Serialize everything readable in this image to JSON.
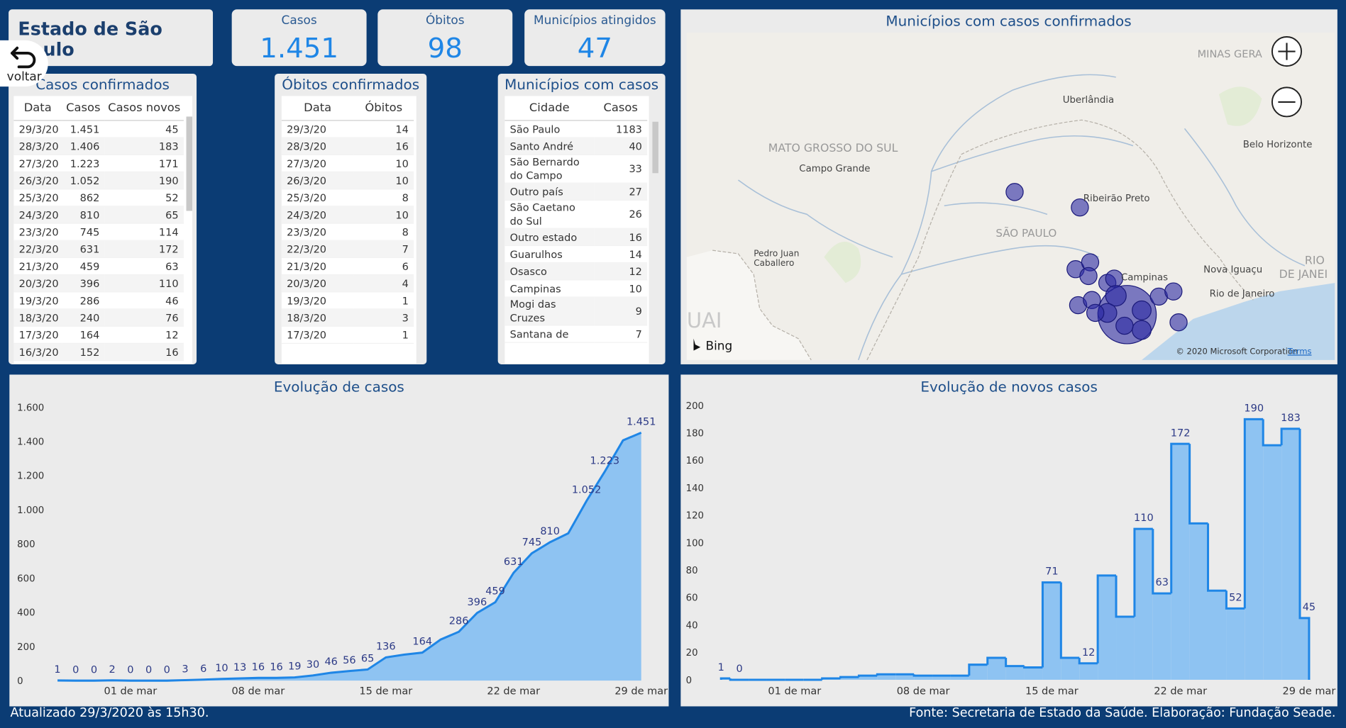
{
  "header": {
    "title": "Estado de São Paulo",
    "back_button": "voltar"
  },
  "kpis": [
    {
      "label": "Casos",
      "value": "1.451"
    },
    {
      "label": "Óbitos",
      "value": "98"
    },
    {
      "label": "Municípios atingidos",
      "value": "47"
    }
  ],
  "tables": [
    {
      "title": "Casos confirmados",
      "columns": [
        "Data",
        "Casos",
        "Casos novos"
      ],
      "rows": [
        [
          "29/3/20",
          "1.451",
          "45"
        ],
        [
          "28/3/20",
          "1.406",
          "183"
        ],
        [
          "27/3/20",
          "1.223",
          "171"
        ],
        [
          "26/3/20",
          "1.052",
          "190"
        ],
        [
          "25/3/20",
          "862",
          "52"
        ],
        [
          "24/3/20",
          "810",
          "65"
        ],
        [
          "23/3/20",
          "745",
          "114"
        ],
        [
          "22/3/20",
          "631",
          "172"
        ],
        [
          "21/3/20",
          "459",
          "63"
        ],
        [
          "20/3/20",
          "396",
          "110"
        ],
        [
          "19/3/20",
          "286",
          "46"
        ],
        [
          "18/3/20",
          "240",
          "76"
        ],
        [
          "17/3/20",
          "164",
          "12"
        ],
        [
          "16/3/20",
          "152",
          "16"
        ]
      ]
    },
    {
      "title": "Óbitos confirmados",
      "columns": [
        "Data",
        "Óbitos"
      ],
      "rows": [
        [
          "29/3/20",
          "14"
        ],
        [
          "28/3/20",
          "16"
        ],
        [
          "27/3/20",
          "10"
        ],
        [
          "26/3/20",
          "10"
        ],
        [
          "25/3/20",
          "8"
        ],
        [
          "24/3/20",
          "10"
        ],
        [
          "23/3/20",
          "8"
        ],
        [
          "22/3/20",
          "7"
        ],
        [
          "21/3/20",
          "6"
        ],
        [
          "20/3/20",
          "4"
        ],
        [
          "19/3/20",
          "1"
        ],
        [
          "18/3/20",
          "3"
        ],
        [
          "17/3/20",
          "1"
        ]
      ]
    },
    {
      "title": "Municípios com casos",
      "columns": [
        "Cidade",
        "Casos"
      ],
      "rows": [
        [
          "São Paulo",
          "1183"
        ],
        [
          "Santo André",
          "40"
        ],
        [
          "São Bernardo do Campo",
          "33"
        ],
        [
          "Outro país",
          "27"
        ],
        [
          "São Caetano do Sul",
          "26"
        ],
        [
          "Outro estado",
          "16"
        ],
        [
          "Guarulhos",
          "14"
        ],
        [
          "Osasco",
          "12"
        ],
        [
          "Campinas",
          "10"
        ],
        [
          "Mogi das Cruzes",
          "9"
        ],
        [
          "Santana de",
          "7"
        ]
      ]
    }
  ],
  "map": {
    "title": "Municípios com casos confirmados",
    "labels": [
      "MINAS GERA",
      "Uberlândia",
      "MATO GROSSO DO SUL",
      "Campo Grande",
      "Ribeirão Preto",
      "SÃO PAULO",
      "Belo Horizonte",
      "Pedro Juan",
      "Caballero",
      "Campinas",
      "Nova Iguaçu",
      "Rio de Janeiro",
      "RIO",
      "DE JANEI",
      "UAI"
    ],
    "provider": "Bing",
    "attribution": "© 2020 Microsoft Corporation",
    "terms": "Terms"
  },
  "chart_data": [
    {
      "type": "area",
      "title": "Evolução de casos",
      "categories": [
        null,
        null,
        null,
        null,
        "01 de mar",
        null,
        null,
        null,
        null,
        null,
        null,
        "08 de mar",
        null,
        null,
        null,
        null,
        null,
        null,
        "15 de mar",
        null,
        null,
        null,
        null,
        null,
        null,
        "22 de mar",
        null,
        null,
        null,
        null,
        null,
        null,
        "29 de mar"
      ],
      "values": [
        1,
        0,
        0,
        2,
        0,
        0,
        0,
        3,
        6,
        10,
        13,
        16,
        16,
        19,
        30,
        46,
        56,
        65,
        136,
        152,
        164,
        240,
        286,
        396,
        459,
        631,
        745,
        810,
        862,
        1052,
        1223,
        1406,
        1451
      ],
      "value_labels": [
        "1",
        "0",
        "0",
        "2",
        "0",
        "0",
        "0",
        "3",
        "6",
        "10",
        "13",
        "16",
        "16",
        "19",
        "30",
        "46",
        "56",
        "65",
        "136",
        null,
        "164",
        null,
        "286",
        "396",
        "459",
        "631",
        "745",
        "810",
        null,
        "1.052",
        "1.223",
        null,
        "1.451"
      ],
      "color": "#1f86e6",
      "fill": "#8ec3f2",
      "ylim": [
        0,
        1600
      ],
      "yticks": [
        0,
        200,
        400,
        600,
        800,
        {
          "value": 1000,
          "label": "1.000"
        },
        {
          "value": 1200,
          "label": "1.200"
        },
        {
          "value": 1400,
          "label": "1.400"
        },
        {
          "value": 1600,
          "label": "1.600"
        }
      ]
    },
    {
      "type": "step",
      "title": "Evolução de novos casos",
      "categories": [
        null,
        null,
        null,
        null,
        "01 de mar",
        null,
        null,
        null,
        null,
        null,
        null,
        "08 de mar",
        null,
        null,
        null,
        null,
        null,
        null,
        "15 de mar",
        null,
        null,
        null,
        null,
        null,
        null,
        "22 de mar",
        null,
        null,
        null,
        null,
        null,
        null,
        "29 de mar"
      ],
      "values": [
        1,
        0,
        0,
        0,
        0,
        0,
        1,
        2,
        3,
        4,
        4,
        3,
        3,
        3,
        11,
        16,
        10,
        9,
        71,
        16,
        12,
        76,
        46,
        110,
        63,
        172,
        114,
        65,
        52,
        190,
        171,
        183,
        45
      ],
      "value_labels": [
        "1",
        "0",
        null,
        null,
        null,
        null,
        null,
        null,
        null,
        null,
        null,
        null,
        null,
        null,
        null,
        null,
        null,
        null,
        "71",
        null,
        "12",
        null,
        null,
        "110",
        "63",
        "172",
        null,
        null,
        "52",
        "190",
        null,
        "183",
        "45"
      ],
      "color": "#1f86e6",
      "fill": "#8ec3f2",
      "ylim": [
        0,
        200
      ],
      "yticks": [
        0,
        20,
        40,
        60,
        80,
        100,
        120,
        140,
        160,
        180,
        200
      ]
    }
  ],
  "footer": {
    "updated": "Atualizado 29/3/2020 às 15h30.",
    "source": "Fonte: Secretaria de Estado da Saúde. Elaboração: Fundação Seade."
  }
}
